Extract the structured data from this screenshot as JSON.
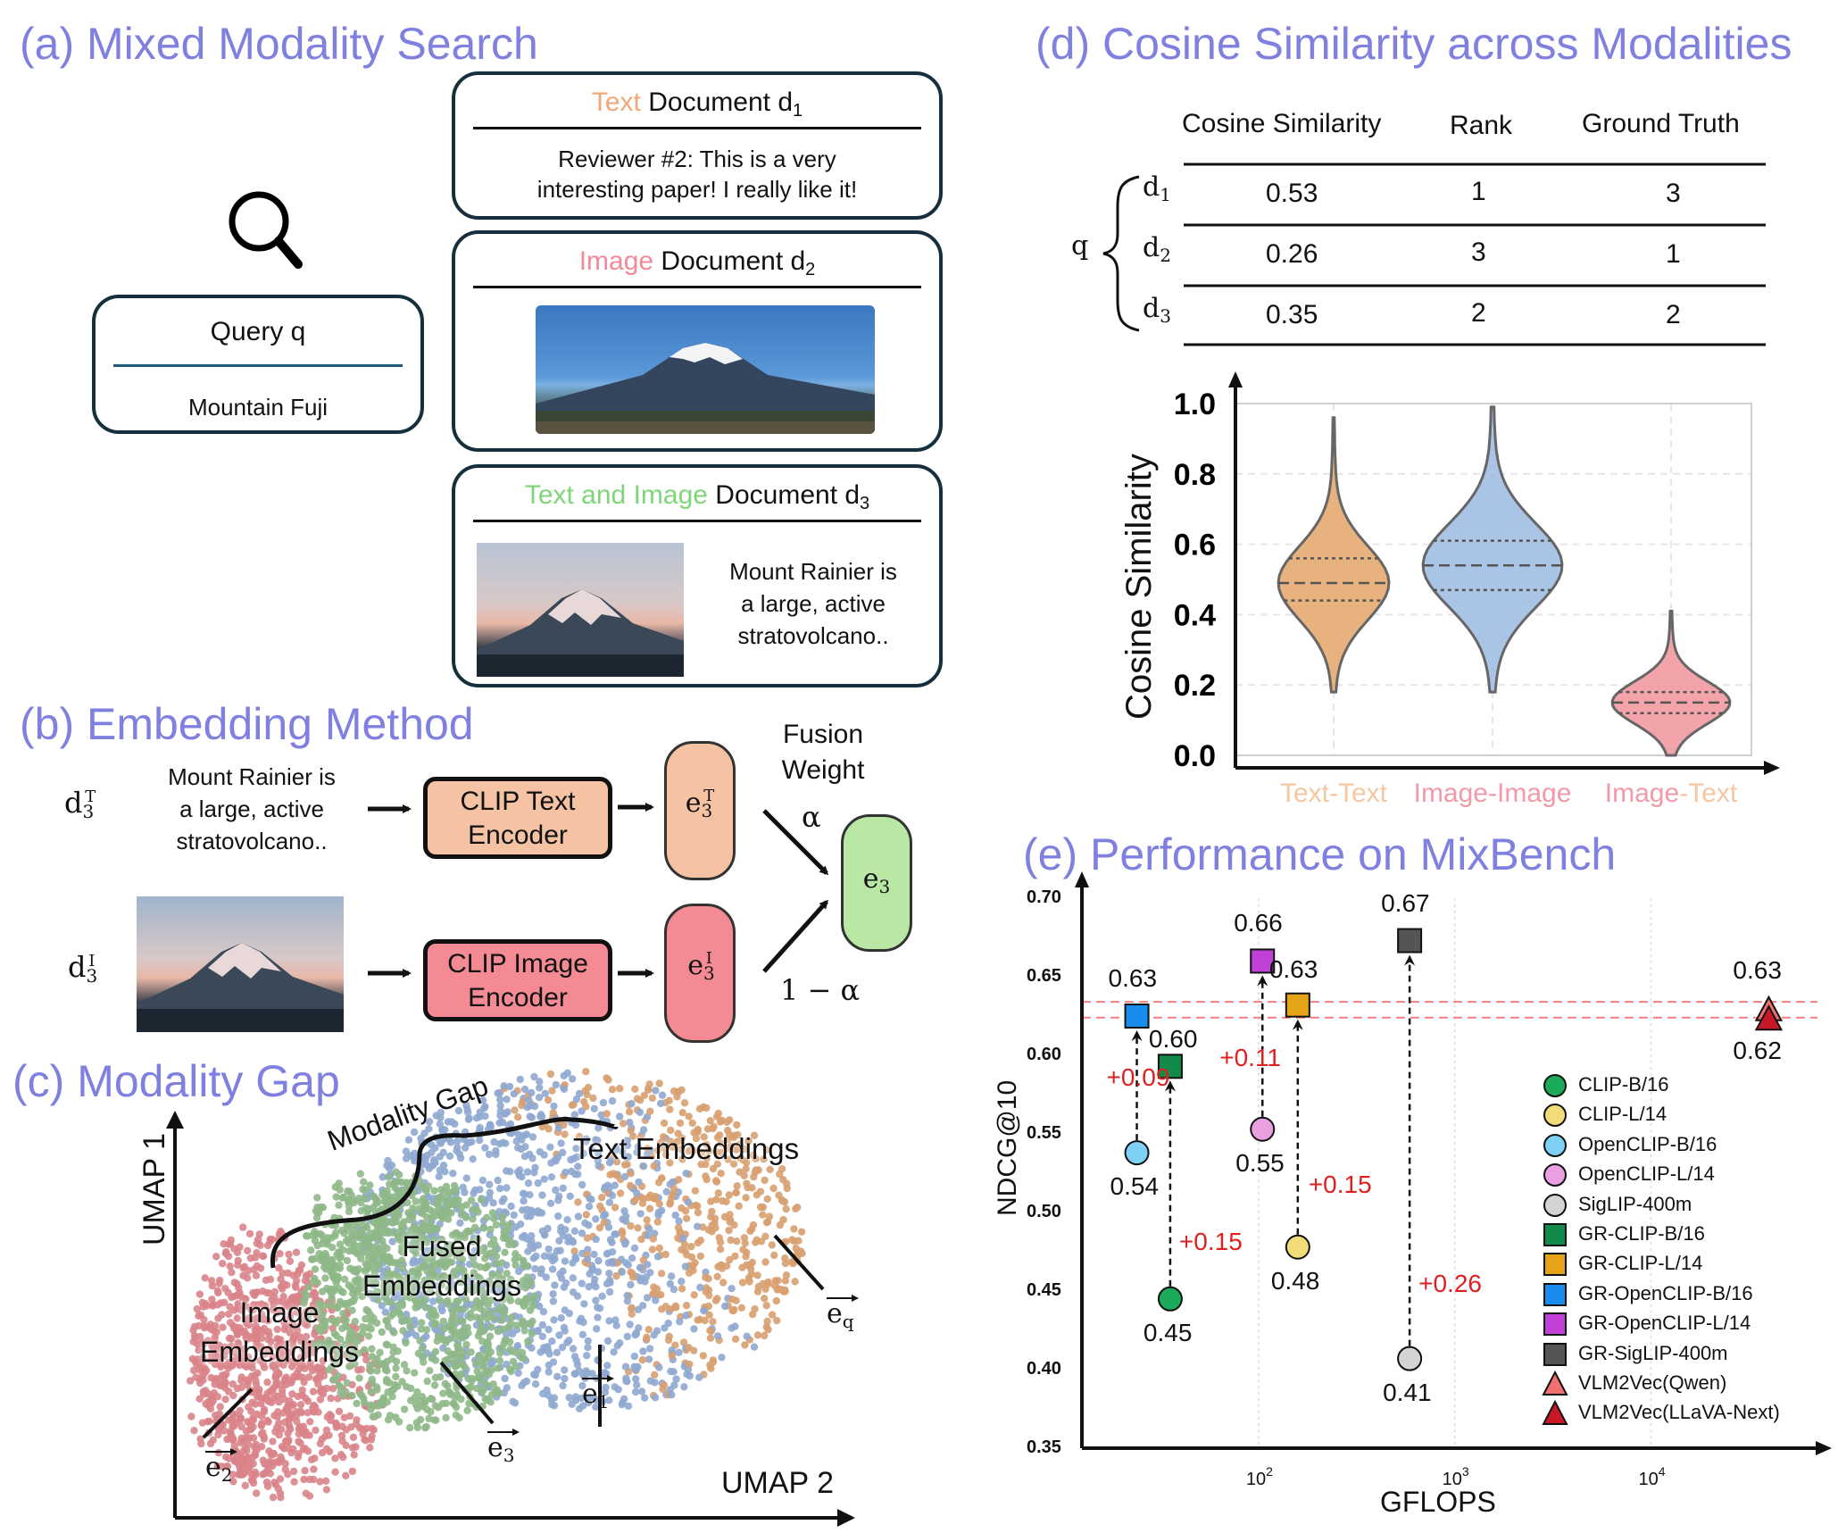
{
  "panel_a": {
    "title": "(a) Mixed Modality Search",
    "query": {
      "title": "Query q",
      "text": "Mountain Fuji"
    },
    "doc1": {
      "modality": "Text",
      "label": "Document d",
      "sub": "1",
      "line1": "Reviewer #2: This is a very",
      "line2": "interesting paper! I really like it!"
    },
    "doc2": {
      "modality": "Image",
      "label": "Document d",
      "sub": "2"
    },
    "doc3": {
      "modality": "Text and Image",
      "label": "Document d",
      "sub": "3",
      "line1": "Mount Rainier is",
      "line2": "a large, active",
      "line3": "stratovolcano.."
    },
    "colors": {
      "text": "#f0a878",
      "image": "#f28a9a",
      "both": "#7fd67a"
    }
  },
  "panel_b": {
    "title": "(b) Embedding Method",
    "dT": {
      "base": "d",
      "sub": "3",
      "sup": "T"
    },
    "dI": {
      "base": "d",
      "sub": "3",
      "sup": "I"
    },
    "text": {
      "line1": "Mount Rainier is",
      "line2": "a large, active",
      "line3": "stratovolcano.."
    },
    "text_encoder": {
      "line1": "CLIP Text",
      "line2": "Encoder"
    },
    "image_encoder": {
      "line1": "CLIP Image",
      "line2": "Encoder"
    },
    "eT": {
      "base": "e",
      "sub": "3",
      "sup": "T"
    },
    "eI": {
      "base": "e",
      "sub": "3",
      "sup": "I"
    },
    "e3": {
      "base": "e",
      "sub": "3"
    },
    "fusion": {
      "line1": "Fusion",
      "line2": "Weight"
    },
    "alpha": "α",
    "one_minus_alpha": "1 − α"
  },
  "panel_c": {
    "title": "(c) Modality Gap",
    "y_label": "UMAP 1",
    "x_label": "UMAP 2",
    "gap_label": "Modality Gap",
    "text_emb": "Text Embeddings",
    "fused_emb": {
      "line1": "Fused",
      "line2": "Embeddings"
    },
    "image_emb": {
      "line1": "Image",
      "line2": "Embeddings"
    },
    "e1": {
      "base": "e",
      "sub": "1"
    },
    "e2": {
      "base": "e",
      "sub": "2"
    },
    "e3": {
      "base": "e",
      "sub": "3"
    },
    "eq": {
      "base": "e",
      "sub": "q"
    },
    "colors": {
      "image": "#d9848a",
      "fused": "#8fb888",
      "text_blue": "#8fa8d0",
      "text_orange": "#d8a070"
    }
  },
  "panel_d": {
    "title": "(d) Cosine Similarity across Modalities",
    "table": {
      "headers": [
        "Cosine Similarity",
        "Rank",
        "Ground Truth"
      ],
      "query": "q",
      "rows": [
        {
          "doc": "d",
          "sub": "1",
          "cos": "0.53",
          "rank": "1",
          "gt": "3"
        },
        {
          "doc": "d",
          "sub": "2",
          "cos": "0.26",
          "rank": "3",
          "gt": "1"
        },
        {
          "doc": "d",
          "sub": "3",
          "cos": "0.35",
          "rank": "2",
          "gt": "2"
        }
      ]
    },
    "violin": {
      "ylabel": "Cosine Similarity",
      "yticks": [
        "0.0",
        "0.2",
        "0.4",
        "0.6",
        "0.8",
        "1.0"
      ],
      "groups": [
        {
          "a": "Text",
          "b": "Text",
          "ca": "#f5c7a0",
          "cb": "#f5c7a0",
          "fill": "#e8b27e"
        },
        {
          "a": "Image",
          "b": "Image",
          "ca": "#f29aa8",
          "cb": "#f29aa8",
          "fill": "#a9c4e4"
        },
        {
          "a": "Image",
          "b": "Text",
          "ca": "#f29aa8",
          "cb": "#f5c7a0",
          "fill": "#f3a4aa"
        }
      ],
      "sep": "-"
    }
  },
  "chart_data": {
    "type": "violin",
    "title": "",
    "ylabel": "Cosine Similarity",
    "ylim": [
      0,
      1
    ],
    "categories": [
      "Text-Text",
      "Image-Image",
      "Image-Text"
    ],
    "medians": [
      0.49,
      0.54,
      0.15
    ],
    "quartiles": [
      [
        0.44,
        0.56
      ],
      [
        0.47,
        0.61
      ],
      [
        0.12,
        0.18
      ]
    ],
    "ranges": [
      [
        0.18,
        0.96
      ],
      [
        0.18,
        0.99
      ],
      [
        0.0,
        0.41
      ]
    ],
    "grid": true
  },
  "panel_e": {
    "title": "(e) Performance on MixBench",
    "xlabel": "GFLOPS",
    "ylabel": "NDCG@10",
    "yticks": [
      "0.70",
      "0.65",
      "0.60",
      "0.55",
      "0.50",
      "0.45",
      "0.40",
      "0.35"
    ],
    "xticks": [
      {
        "base": "10",
        "exp": "2"
      },
      {
        "base": "10",
        "exp": "3"
      },
      {
        "base": "10",
        "exp": "4"
      }
    ],
    "point_labels": {
      "clip_b": "0.45",
      "gr_clip_b": "0.60",
      "clip_l": "0.48",
      "gr_clip_l": "0.63",
      "oclip_b": "0.54",
      "gr_oclip_b": "0.63",
      "oclip_l": "0.55",
      "gr_oclip_l": "0.66",
      "siglip": "0.41",
      "gr_siglip": "0.67",
      "vlm_qwen": "0.63",
      "vlm_llava": "0.62"
    },
    "gains": {
      "clip_b": "+0.15",
      "clip_l": "+0.15",
      "oclip_b": "+0.09",
      "oclip_l": "+0.11",
      "siglip": "+0.26"
    },
    "legend": [
      {
        "label": "CLIP-B/16",
        "shape": "circle",
        "color": "#1aaa5a"
      },
      {
        "label": "CLIP-L/14",
        "shape": "circle",
        "color": "#f2dc7a"
      },
      {
        "label": "OpenCLIP-B/16",
        "shape": "circle",
        "color": "#7fd0f5"
      },
      {
        "label": "OpenCLIP-L/14",
        "shape": "circle",
        "color": "#eaa0e0"
      },
      {
        "label": "SigLIP-400m",
        "shape": "circle",
        "color": "#d4d4d4"
      },
      {
        "label": "GR-CLIP-B/16",
        "shape": "square",
        "color": "#128a4a"
      },
      {
        "label": "GR-CLIP-L/14",
        "shape": "square",
        "color": "#e5a418"
      },
      {
        "label": "GR-OpenCLIP-B/16",
        "shape": "square",
        "color": "#1a8cf0"
      },
      {
        "label": "GR-OpenCLIP-L/14",
        "shape": "square",
        "color": "#c040d8"
      },
      {
        "label": "GR-SigLIP-400m",
        "shape": "square",
        "color": "#555555"
      },
      {
        "label": "VLM2Vec(Qwen)",
        "shape": "triangle",
        "color": "#f07070"
      },
      {
        "label": "VLM2Vec(LLaVA-Next)",
        "shape": "triangle",
        "color": "#c81828"
      }
    ]
  }
}
